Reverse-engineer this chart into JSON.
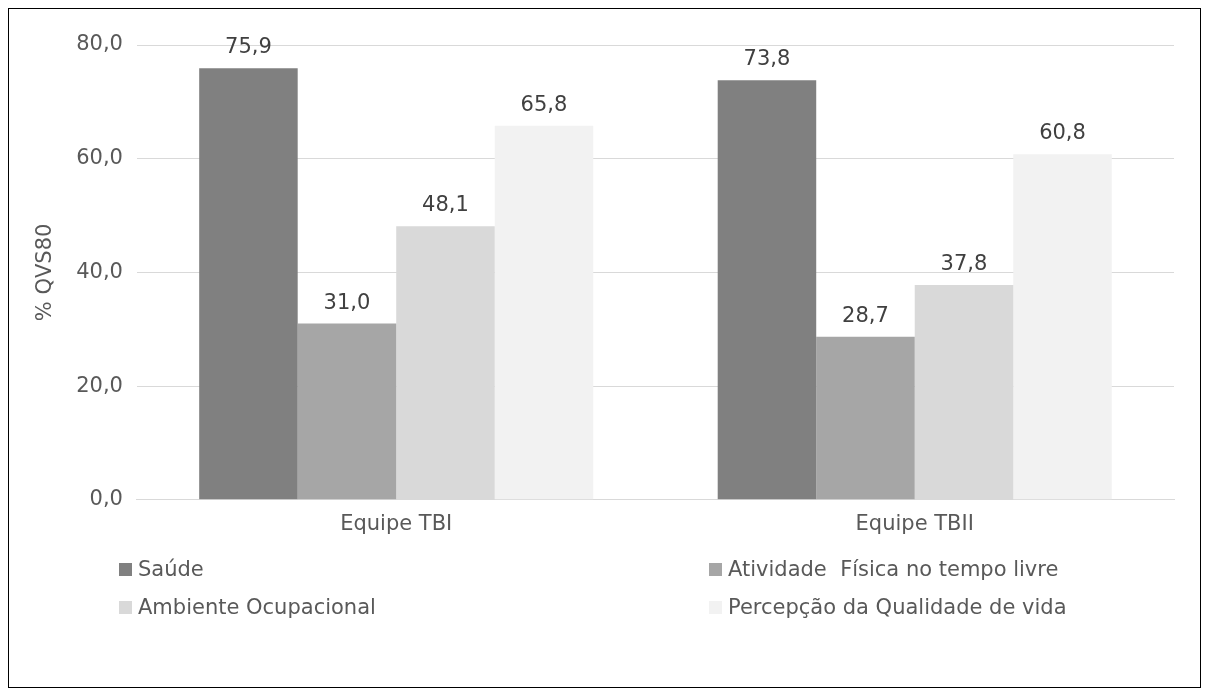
{
  "chart_data": {
    "type": "bar",
    "ylabel": "% QVS80",
    "categories": [
      "Equipe TBI",
      "Equipe TBII"
    ],
    "series": [
      {
        "name": "Saúde",
        "color": "#808080",
        "values": [
          75.9,
          73.8
        ],
        "value_labels": [
          "75,9",
          "73,8"
        ]
      },
      {
        "name": "Atividade  Física no tempo livre",
        "color": "#a6a6a6",
        "values": [
          31.0,
          28.7
        ],
        "value_labels": [
          "31,0",
          "28,7"
        ]
      },
      {
        "name": "Ambiente Ocupacional",
        "color": "#d9d9d9",
        "values": [
          48.1,
          37.8
        ],
        "value_labels": [
          "48,1",
          "37,8"
        ]
      },
      {
        "name": "Percepção da Qualidade de vida",
        "color": "#f2f2f2",
        "values": [
          65.8,
          60.8
        ],
        "value_labels": [
          "65,8",
          "60,8"
        ]
      }
    ],
    "ylim": [
      0,
      80
    ],
    "yticks": [
      {
        "value": 0,
        "label": "0,0"
      },
      {
        "value": 20,
        "label": "20,0"
      },
      {
        "value": 40,
        "label": "40,0"
      },
      {
        "value": 60,
        "label": "60,0"
      },
      {
        "value": 80,
        "label": "80,0"
      }
    ],
    "grid": "y",
    "legend": "bottom"
  }
}
